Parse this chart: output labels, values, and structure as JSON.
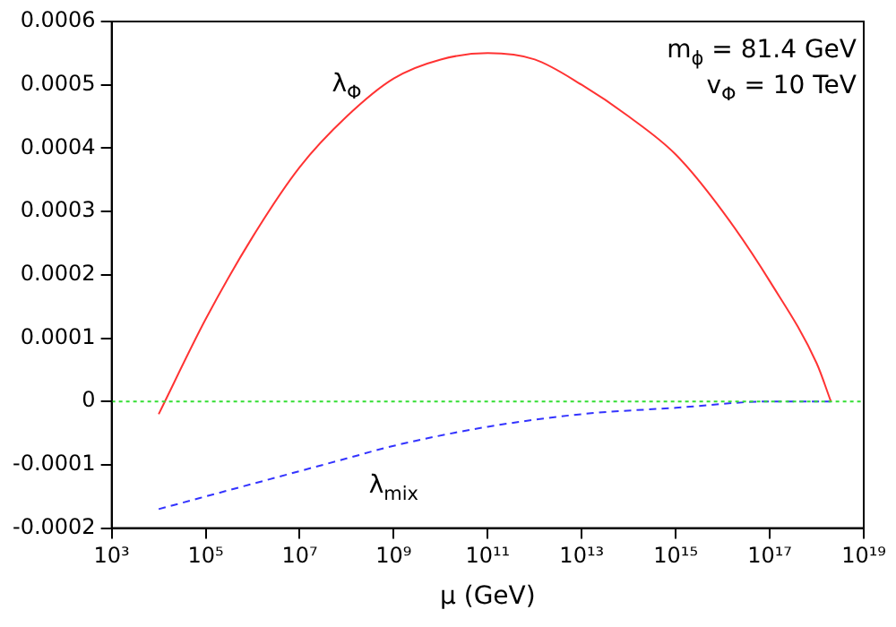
{
  "chart_data": {
    "type": "line",
    "xlabel": "μ (GeV)",
    "annotations": [
      "m$_{ϕ}$ = 81.4 GeV",
      "v$_{Φ}$ = 10 TeV"
    ],
    "log": "x",
    "xlim": [
      1000,
      1e+19
    ],
    "xticks": [
      {
        "value": 1000,
        "label": "10³"
      },
      {
        "value": 100000,
        "label": "10⁵"
      },
      {
        "value": 10000000.0,
        "label": "10⁷"
      },
      {
        "value": 1000000000.0,
        "label": "10⁹"
      },
      {
        "value": 100000000000.0,
        "label": "10¹¹"
      },
      {
        "value": 10000000000000.0,
        "label": "10¹³"
      },
      {
        "value": 1000000000000000.0,
        "label": "10¹⁵"
      },
      {
        "value": 1e+17,
        "label": "10¹⁷"
      },
      {
        "value": 1e+19,
        "label": "10¹⁹"
      }
    ],
    "ylim": [
      -0.0002,
      0.0006
    ],
    "yticks": [
      -0.0002,
      -0.0001,
      0,
      0.0001,
      0.0002,
      0.0003,
      0.0004,
      0.0005,
      0.0006
    ],
    "grid": false,
    "legend": false,
    "marker": "none",
    "ref_lines": [
      {
        "axis": "y",
        "value": 0,
        "color": "#33dd33",
        "line_style": "dotted"
      }
    ],
    "series": [
      {
        "name": "λ$_{Φ}$",
        "color": "#ff3333",
        "line_style": "solid",
        "x": [
          10000.0,
          100000.0,
          1000000.0,
          10000000.0,
          100000000.0,
          1000000000.0,
          10000000000.0,
          100000000000.0,
          1000000000000.0,
          10000000000000.0,
          100000000000000.0,
          1000000000000000.0,
          1e+16,
          1e+17,
          1e+18,
          2e+18
        ],
        "values": [
          -2e-05,
          0.00013,
          0.00026,
          0.00037,
          0.00045,
          0.00051,
          0.00054,
          0.00055,
          0.00054,
          0.0005,
          0.00045,
          0.00039,
          0.0003,
          0.00019,
          6e-05,
          0
        ]
      },
      {
        "name": "λ$_{mix}$",
        "color": "#3333ff",
        "line_style": "dashed",
        "x": [
          10000.0,
          100000.0,
          1000000.0,
          10000000.0,
          100000000.0,
          1000000000.0,
          100000000000.0,
          10000000000000.0,
          1000000000000000.0,
          1e+17,
          2e+18
        ],
        "values": [
          -0.00017,
          -0.00015,
          -0.00013,
          -0.00011,
          -9e-05,
          -7e-05,
          -4e-05,
          -2e-05,
          -1e-05,
          0,
          0
        ]
      }
    ]
  }
}
